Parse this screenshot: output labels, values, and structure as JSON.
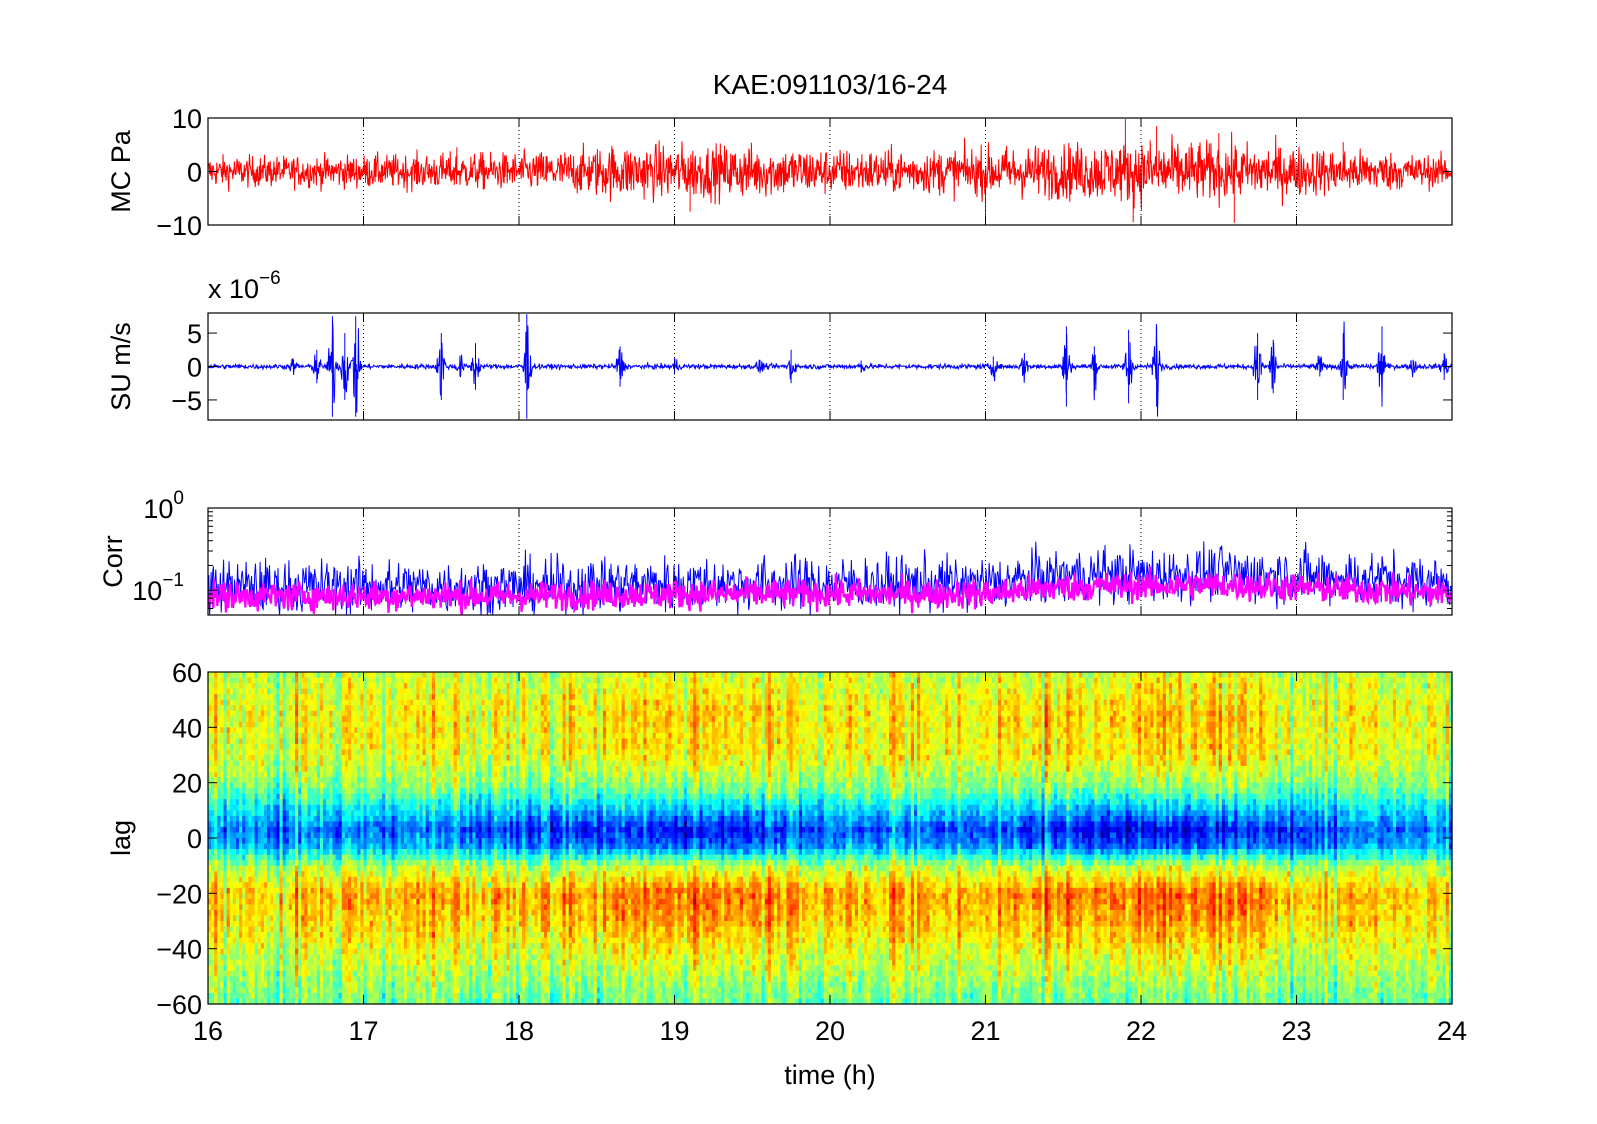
{
  "figure": {
    "title": "KAE:091103/16-24"
  },
  "chart_data": [
    {
      "id": "mc",
      "type": "line",
      "ylabel": "MC Pa",
      "ylim": [
        -10,
        10
      ],
      "yticks": [
        {
          "v": 10,
          "t": "10"
        },
        {
          "v": 0,
          "t": "0"
        },
        {
          "v": -10,
          "t": "−10"
        }
      ],
      "xlim": [
        16,
        24
      ],
      "grid": "x-dotted",
      "series": [
        {
          "color": "#ff0000",
          "values_note_free": true,
          "envelope": [
            [
              16,
              1.9
            ],
            [
              16.5,
              1.9
            ],
            [
              17,
              2.0
            ],
            [
              17.5,
              2.2
            ],
            [
              18,
              2.3
            ],
            [
              18.3,
              2.6
            ],
            [
              18.6,
              3.3
            ],
            [
              19,
              3.4
            ],
            [
              19.5,
              3.2
            ],
            [
              20,
              2.8
            ],
            [
              20.5,
              2.6
            ],
            [
              21,
              3.0
            ],
            [
              21.5,
              3.4
            ],
            [
              22,
              3.9
            ],
            [
              22.5,
              3.6
            ],
            [
              23,
              3.1
            ],
            [
              23.5,
              2.5
            ],
            [
              24,
              1.8
            ]
          ],
          "spikes": [
            [
              17.6,
              4.5
            ],
            [
              19.1,
              -7.5
            ],
            [
              21,
              -9
            ],
            [
              21.9,
              9.8
            ],
            [
              21.95,
              -9.5
            ],
            [
              22.1,
              8.5
            ],
            [
              22.6,
              -9.6
            ],
            [
              22.5,
              7.2
            ],
            [
              23.3,
              5.5
            ]
          ]
        }
      ]
    },
    {
      "id": "su",
      "type": "line",
      "ylabel": "SU m/s",
      "exponent": "x 10",
      "exponent_power": "−6",
      "ylim": [
        -8,
        8
      ],
      "yticks": [
        {
          "v": 5,
          "t": "5"
        },
        {
          "v": 0,
          "t": "0"
        },
        {
          "v": -5,
          "t": "−5"
        }
      ],
      "xlim": [
        16,
        24
      ],
      "grid": "x-dotted",
      "series": [
        {
          "color": "#0000ff",
          "bursts": [
            [
              16.55,
              1.0
            ],
            [
              16.7,
              2.5
            ],
            [
              16.8,
              7.5
            ],
            [
              16.88,
              5.0
            ],
            [
              16.95,
              7.5
            ],
            [
              17.5,
              5.0
            ],
            [
              17.62,
              1.5
            ],
            [
              17.72,
              3.5
            ],
            [
              18.05,
              7.8
            ],
            [
              18.65,
              3.0
            ],
            [
              19.0,
              1.2
            ],
            [
              19.55,
              1.0
            ],
            [
              19.75,
              2.5
            ],
            [
              20.2,
              0.9
            ],
            [
              21.05,
              1.5
            ],
            [
              21.25,
              2.0
            ],
            [
              21.52,
              6.0
            ],
            [
              21.7,
              3.0
            ],
            [
              21.92,
              5.5
            ],
            [
              22.1,
              6.0
            ],
            [
              22.75,
              5.0
            ],
            [
              22.85,
              4.0
            ],
            [
              23.15,
              1.5
            ],
            [
              23.3,
              5.0
            ],
            [
              23.55,
              6.0
            ],
            [
              23.75,
              1.0
            ],
            [
              23.95,
              2.0
            ]
          ]
        }
      ]
    },
    {
      "id": "corr",
      "type": "line",
      "ylabel": "Corr",
      "yscale": "log",
      "ylim": [
        0.05,
        1.0
      ],
      "yticks": [
        {
          "v": 1.0,
          "t": "10",
          "p": "0"
        },
        {
          "v": 0.1,
          "t": "10",
          "p": "−1"
        }
      ],
      "xlim": [
        16,
        24
      ],
      "grid": "x-dotted",
      "series": [
        {
          "color": "#0000ff",
          "level": [
            [
              16,
              0.11
            ],
            [
              18,
              0.11
            ],
            [
              19,
              0.12
            ],
            [
              20,
              0.12
            ],
            [
              21,
              0.12
            ],
            [
              21.5,
              0.15
            ],
            [
              22.5,
              0.16
            ],
            [
              23.5,
              0.14
            ],
            [
              24,
              0.12
            ]
          ]
        },
        {
          "color": "#ff00ff",
          "level": [
            [
              16,
              0.085
            ],
            [
              18,
              0.085
            ],
            [
              19,
              0.09
            ],
            [
              20,
              0.09
            ],
            [
              21,
              0.09
            ],
            [
              21.5,
              0.11
            ],
            [
              22.5,
              0.115
            ],
            [
              23.5,
              0.1
            ],
            [
              24,
              0.09
            ]
          ]
        }
      ]
    },
    {
      "id": "lag",
      "type": "heatmap",
      "ylabel": "lag",
      "xlabel": "time (h)",
      "ylim": [
        -60,
        60
      ],
      "yticks": [
        {
          "v": 60,
          "t": "60"
        },
        {
          "v": 40,
          "t": "40"
        },
        {
          "v": 20,
          "t": "20"
        },
        {
          "v": 0,
          "t": "0"
        },
        {
          "v": -20,
          "t": "−20"
        },
        {
          "v": -40,
          "t": "−40"
        },
        {
          "v": -60,
          "t": "−60"
        }
      ],
      "xlim": [
        16,
        24
      ],
      "xticks": [
        {
          "v": 16,
          "t": "16"
        },
        {
          "v": 17,
          "t": "17"
        },
        {
          "v": 18,
          "t": "18"
        },
        {
          "v": 19,
          "t": "19"
        },
        {
          "v": 20,
          "t": "20"
        },
        {
          "v": 21,
          "t": "21"
        },
        {
          "v": 22,
          "t": "22"
        },
        {
          "v": 23,
          "t": "23"
        },
        {
          "v": 24,
          "t": "24"
        }
      ],
      "colormap": "jet",
      "profile": [
        [
          60,
          0.58
        ],
        [
          45,
          0.64
        ],
        [
          30,
          0.62
        ],
        [
          18,
          0.5
        ],
        [
          8,
          0.3
        ],
        [
          3,
          0.2
        ],
        [
          -3,
          0.28
        ],
        [
          -10,
          0.55
        ],
        [
          -20,
          0.72
        ],
        [
          -30,
          0.68
        ],
        [
          -45,
          0.58
        ],
        [
          -60,
          0.48
        ]
      ],
      "intensity": [
        [
          16,
          0.8
        ],
        [
          17,
          0.9
        ],
        [
          18,
          1.0
        ],
        [
          19,
          1.25
        ],
        [
          19.5,
          1.2
        ],
        [
          20,
          0.95
        ],
        [
          21,
          1.0
        ],
        [
          21.5,
          1.2
        ],
        [
          22,
          1.3
        ],
        [
          22.5,
          1.25
        ],
        [
          23,
          1.0
        ],
        [
          24,
          0.8
        ]
      ]
    }
  ]
}
